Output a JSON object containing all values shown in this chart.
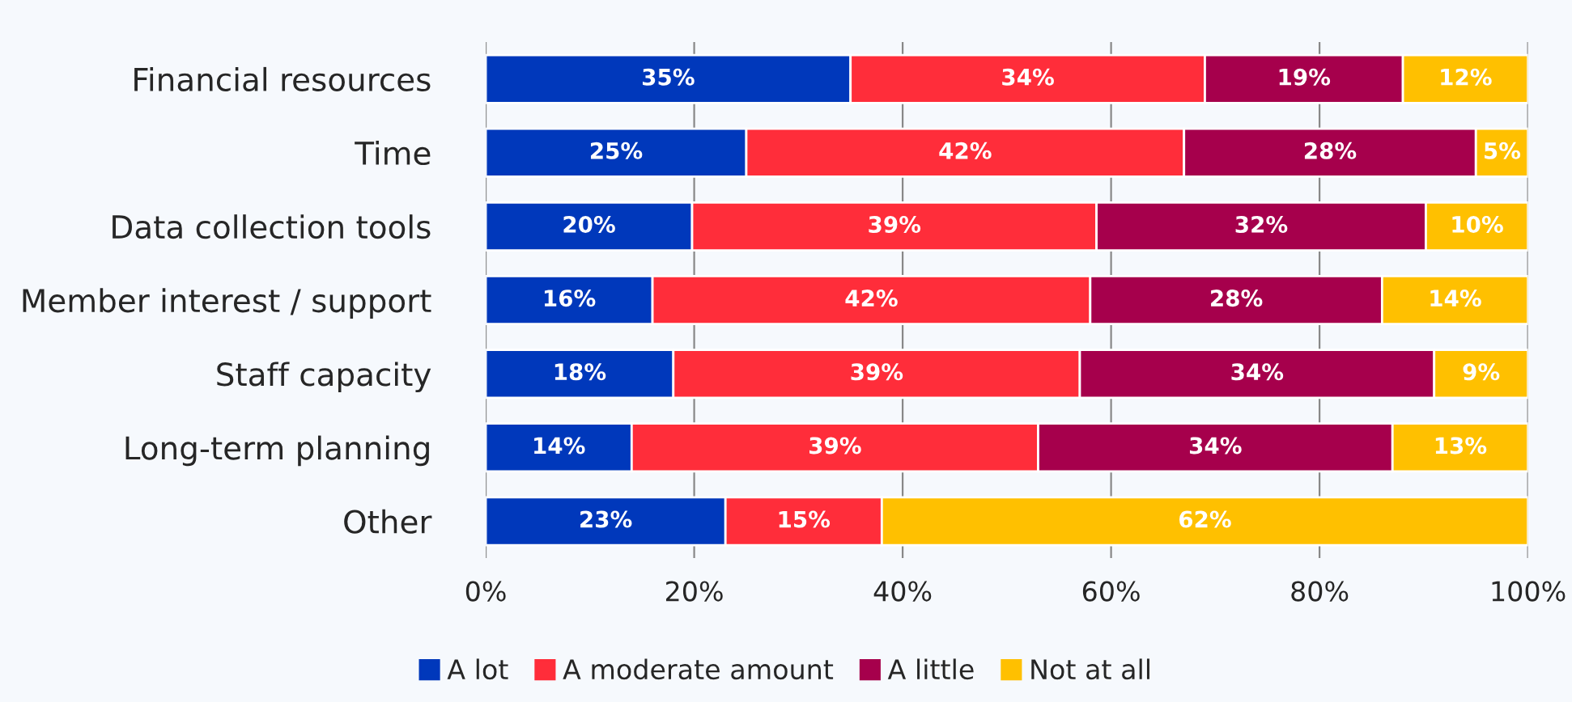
{
  "chart_data": {
    "type": "bar",
    "orientation": "horizontal",
    "stacked": true,
    "categories": [
      "Financial resources",
      "Time",
      "Data collection tools",
      "Member interest / support",
      "Staff capacity",
      "Long-term planning",
      "Other"
    ],
    "series": [
      {
        "name": "A lot",
        "color": "#0038bb",
        "values": [
          35,
          25,
          19.8,
          16,
          18,
          14,
          23
        ],
        "value_labels": [
          "35%",
          "25%",
          "20%",
          "16%",
          "18%",
          "14%",
          "23%"
        ]
      },
      {
        "name": "A moderate amount",
        "color": "#ff2d3a",
        "values": [
          34,
          42,
          38.8,
          42,
          39,
          39,
          15
        ],
        "value_labels": [
          "34%",
          "42%",
          "39%",
          "42%",
          "39%",
          "39%",
          "15%"
        ]
      },
      {
        "name": "A little",
        "color": "#a6004c",
        "values": [
          19,
          28,
          31.6,
          28,
          34,
          34,
          null
        ],
        "value_labels": [
          "19%",
          "28%",
          "32%",
          "28%",
          "34%",
          "34%",
          null
        ]
      },
      {
        "name": "Not at all",
        "color": "#ffc000",
        "values": [
          12,
          5,
          9.8,
          14,
          9,
          13,
          62
        ],
        "value_labels": [
          "12%",
          "5%",
          "10%",
          "14%",
          "9%",
          "13%",
          "62%"
        ]
      }
    ],
    "xlim": [
      0,
      100
    ],
    "xticks": [
      {
        "value": 0,
        "label": "0%"
      },
      {
        "value": 20,
        "label": "20%"
      },
      {
        "value": 40,
        "label": "40%"
      },
      {
        "value": 60,
        "label": "60%"
      },
      {
        "value": 80,
        "label": "80%"
      },
      {
        "value": 100,
        "label": "100%"
      }
    ],
    "grid": "x",
    "legend": "bottom"
  }
}
